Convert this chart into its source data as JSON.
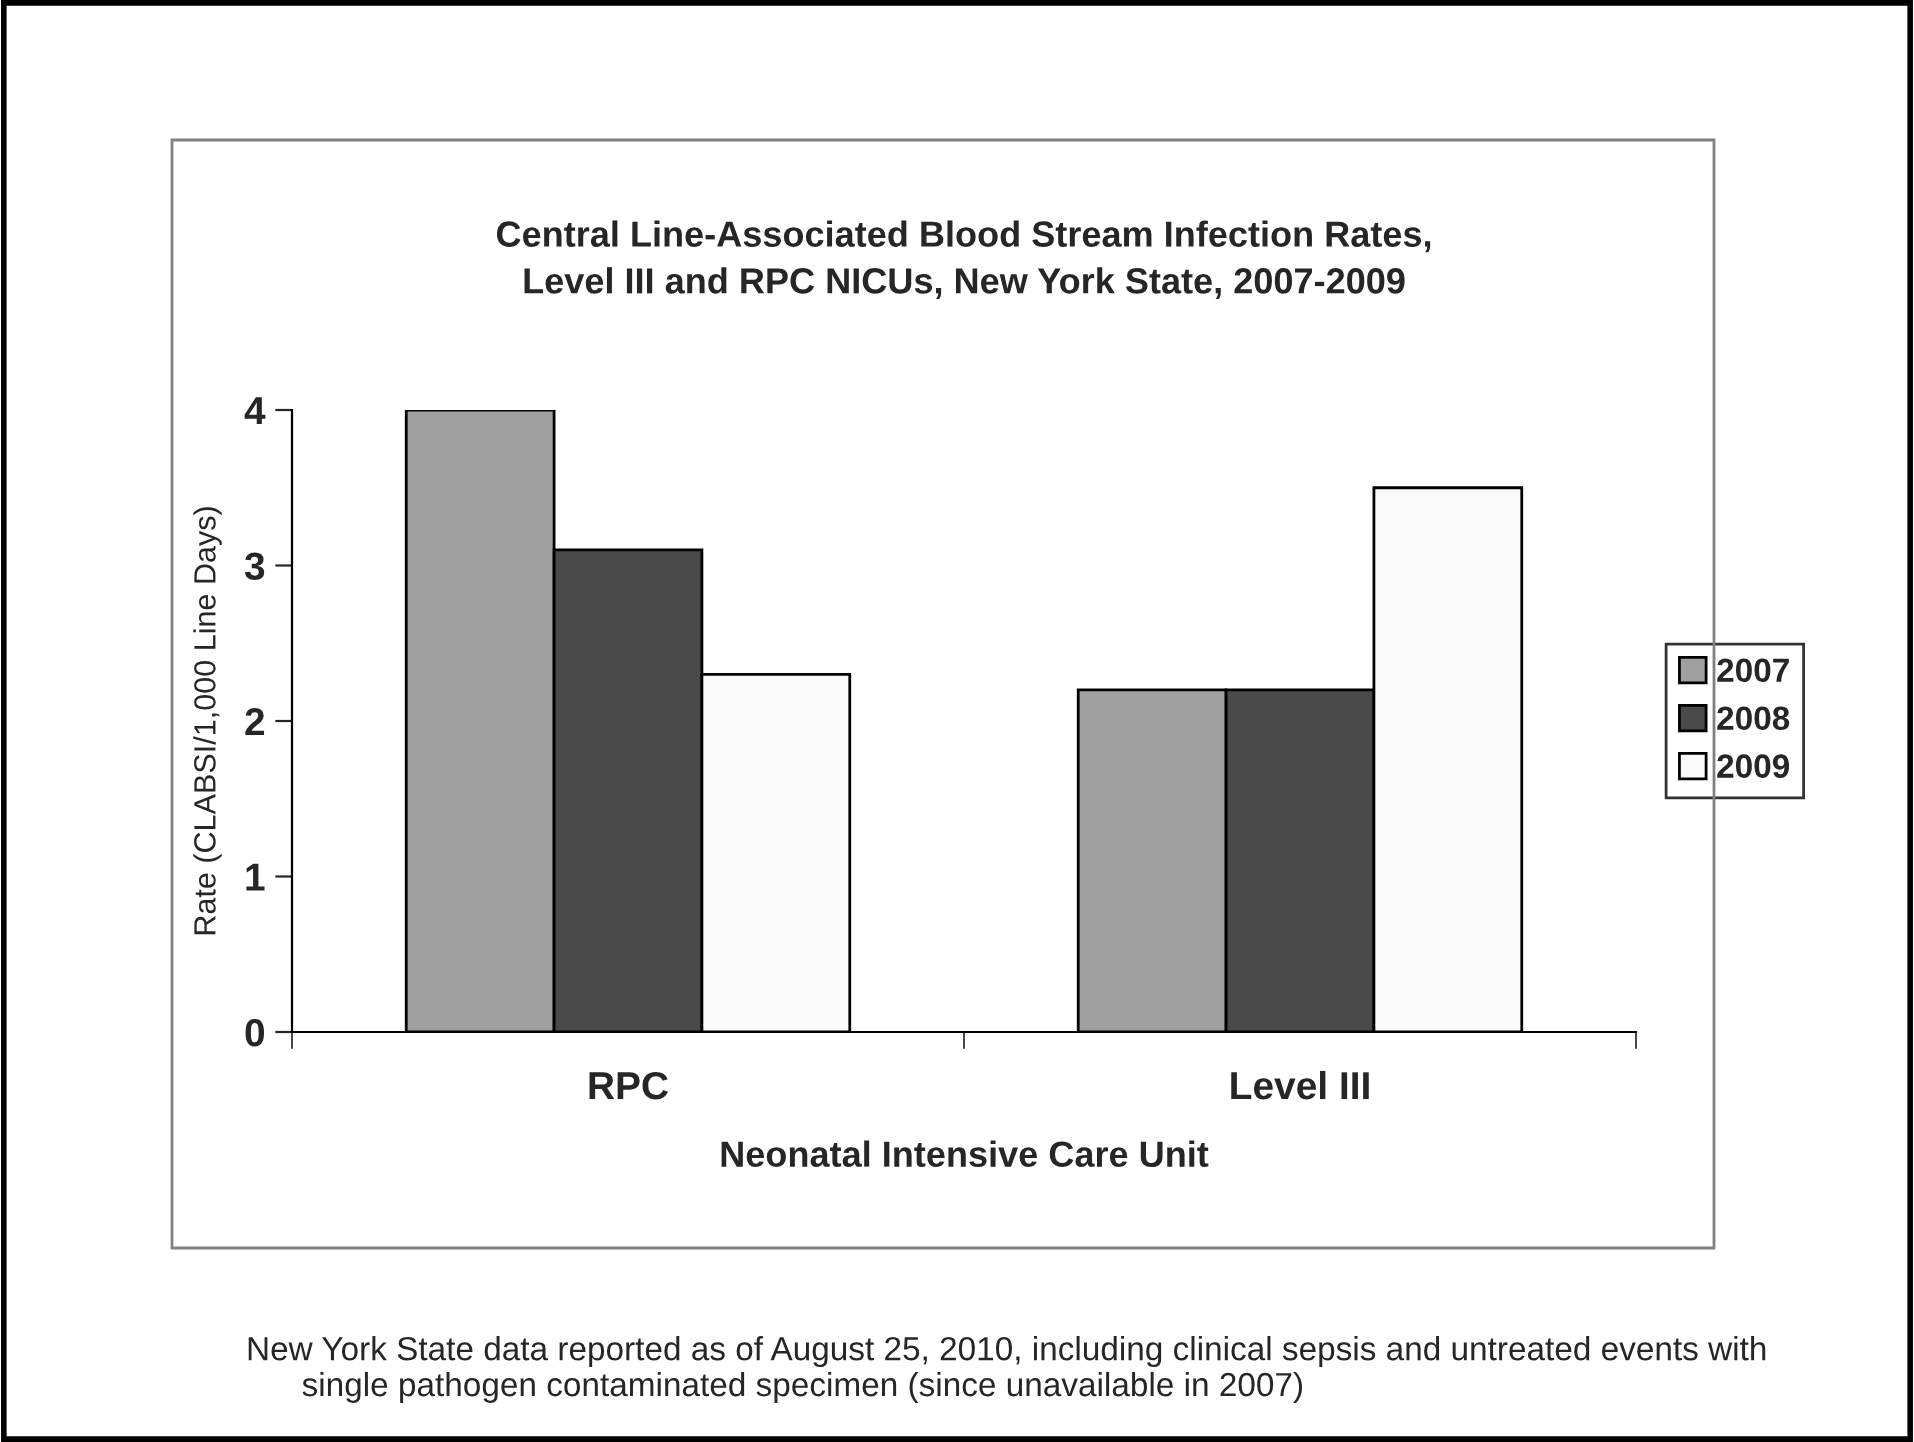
{
  "chart_data": {
    "type": "bar",
    "title": "Central Line-Associated Blood Stream Infection Rates,\nLevel III and RPC NICUs, New York State, 2007-2009",
    "xlabel": "Neonatal Intensive Care Unit",
    "ylabel": "Rate (CLABSI/1,000 Line Days)",
    "categories": [
      "RPC",
      "Level III"
    ],
    "series": [
      {
        "name": "2007",
        "color": "#a0a0a0",
        "values": [
          4.0,
          2.2
        ]
      },
      {
        "name": "2008",
        "color": "#4a4a4a",
        "values": [
          3.1,
          2.2
        ]
      },
      {
        "name": "2009",
        "color": "#fafafa",
        "values": [
          2.3,
          3.5
        ]
      }
    ],
    "ylim": [
      0,
      4
    ],
    "yticks": [
      0,
      1,
      2,
      3,
      4
    ],
    "grid": false,
    "legend": "right",
    "annotations": [
      "New York State data reported as of August 25, 2010, including clinical sepsis and untreated events with\n      single pathogen contaminated specimen (since unavailable in 2007)"
    ]
  }
}
